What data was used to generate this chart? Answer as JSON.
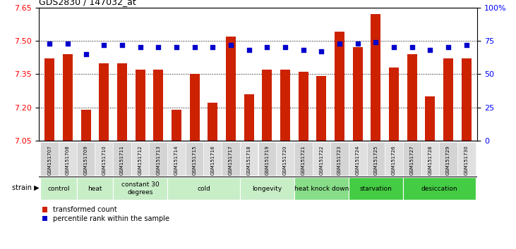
{
  "title": "GDS2830 / 147032_at",
  "samples": [
    "GSM151707",
    "GSM151708",
    "GSM151709",
    "GSM151710",
    "GSM151711",
    "GSM151712",
    "GSM151713",
    "GSM151714",
    "GSM151715",
    "GSM151716",
    "GSM151717",
    "GSM151718",
    "GSM151719",
    "GSM151720",
    "GSM151721",
    "GSM151722",
    "GSM151723",
    "GSM151724",
    "GSM151725",
    "GSM151726",
    "GSM151727",
    "GSM151728",
    "GSM151729",
    "GSM151730"
  ],
  "bar_values": [
    7.42,
    7.44,
    7.19,
    7.4,
    7.4,
    7.37,
    7.37,
    7.19,
    7.35,
    7.22,
    7.52,
    7.26,
    7.37,
    7.37,
    7.36,
    7.34,
    7.54,
    7.47,
    7.62,
    7.38,
    7.44,
    7.25,
    7.42,
    7.42
  ],
  "percentile_values": [
    73,
    73,
    65,
    72,
    72,
    70,
    70,
    70,
    70,
    70,
    72,
    68,
    70,
    70,
    68,
    67,
    73,
    73,
    74,
    70,
    70,
    68,
    70,
    72
  ],
  "bar_color": "#CC2200",
  "percentile_color": "#0000CC",
  "ylim_left": [
    7.05,
    7.65
  ],
  "ylim_right": [
    0,
    100
  ],
  "yticks_left": [
    7.05,
    7.2,
    7.35,
    7.5,
    7.65
  ],
  "yticks_right": [
    0,
    25,
    50,
    75,
    100
  ],
  "ytick_labels_right": [
    "0",
    "25",
    "50",
    "75",
    "100%"
  ],
  "groups": [
    {
      "label": "control",
      "start": 0,
      "end": 2,
      "color": "#c8eec8"
    },
    {
      "label": "heat",
      "start": 2,
      "end": 4,
      "color": "#c8eec8"
    },
    {
      "label": "constant 30\ndegrees",
      "start": 4,
      "end": 7,
      "color": "#c8eec8"
    },
    {
      "label": "cold",
      "start": 7,
      "end": 11,
      "color": "#c8eec8"
    },
    {
      "label": "longevity",
      "start": 11,
      "end": 14,
      "color": "#c8eec8"
    },
    {
      "label": "heat knock down",
      "start": 14,
      "end": 17,
      "color": "#88dd88"
    },
    {
      "label": "starvation",
      "start": 17,
      "end": 20,
      "color": "#44cc44"
    },
    {
      "label": "desiccation",
      "start": 20,
      "end": 24,
      "color": "#44cc44"
    }
  ],
  "bar_width": 0.55,
  "baseline": 7.05
}
